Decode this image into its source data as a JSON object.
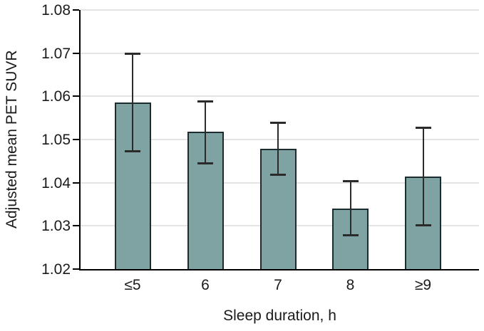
{
  "chart_data": {
    "type": "bar",
    "title": "",
    "xlabel": "Sleep duration, h",
    "ylabel": "Adjusted mean PET SUVR",
    "categories": [
      "≤5",
      "6",
      "7",
      "8",
      "≥9"
    ],
    "values": [
      1.0586,
      1.0518,
      1.0478,
      1.034,
      1.0415
    ],
    "error_low": [
      1.0473,
      1.0445,
      1.0418,
      1.0278,
      1.0302
    ],
    "error_high": [
      1.0699,
      1.0589,
      1.0538,
      1.0403,
      1.0528
    ],
    "ylim": [
      1.02,
      1.08
    ],
    "y_ticks": [
      1.02,
      1.03,
      1.04,
      1.05,
      1.06,
      1.07,
      1.08
    ],
    "y_tick_labels": [
      "1.02",
      "1.03",
      "1.04",
      "1.05",
      "1.06",
      "1.07",
      "1.08"
    ],
    "grid": "horizontal",
    "legend": "none",
    "colors": {
      "bar_fill": "#7fa2a3",
      "bar_border": "#1c2b2e",
      "error_bar": "#2b2b2b",
      "gridline": "#e4e4e4",
      "axis": "#000000",
      "text": "#1a1a1a",
      "background": "#ffffff"
    }
  }
}
